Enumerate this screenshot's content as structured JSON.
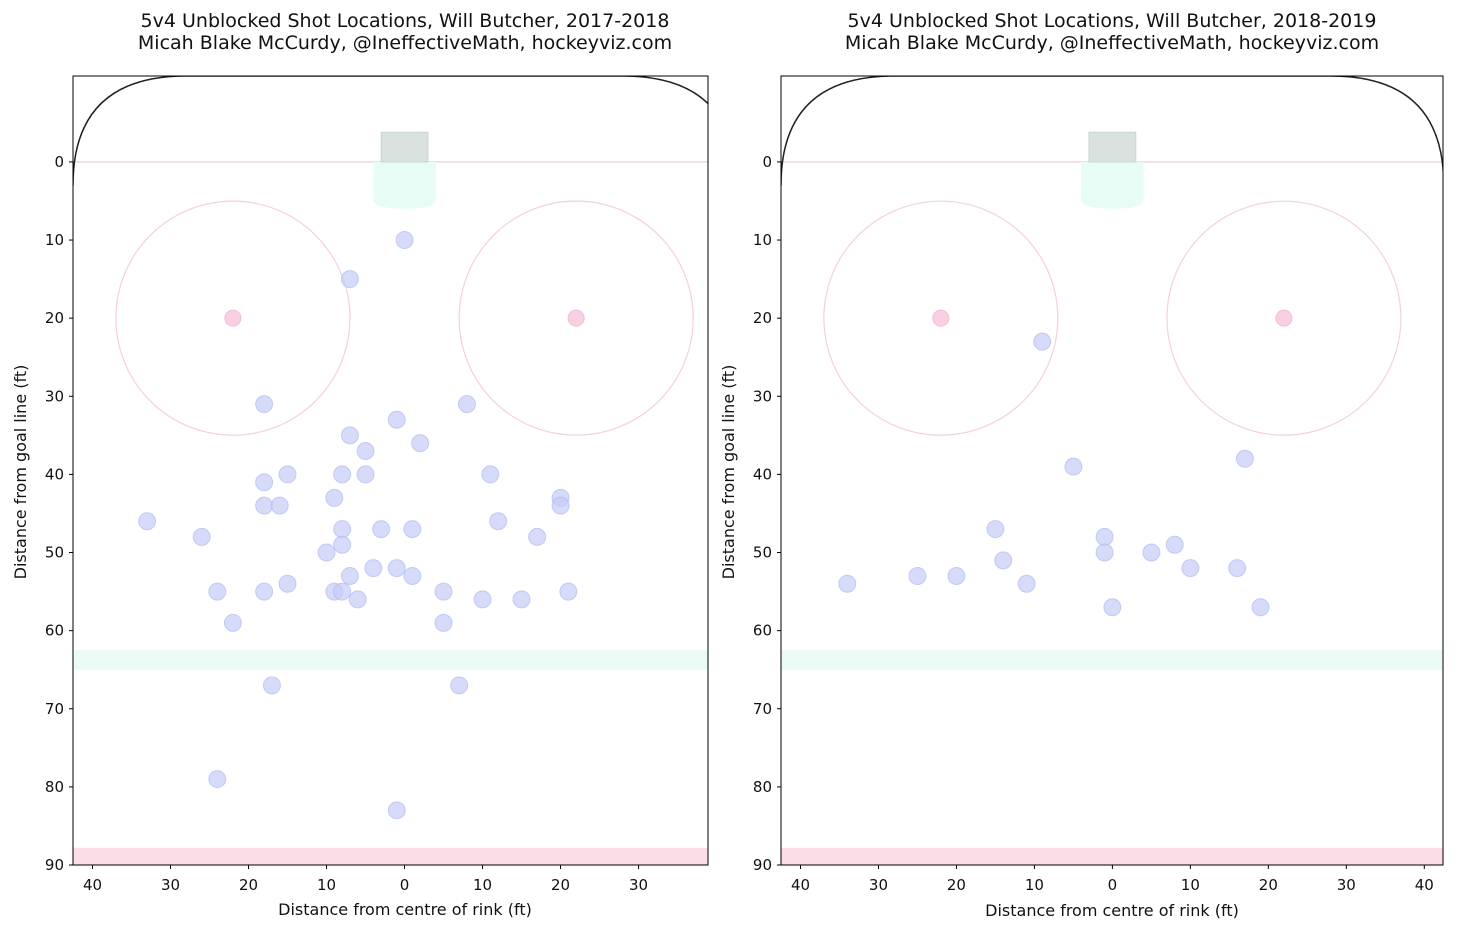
{
  "chart_data": [
    {
      "type": "scatter",
      "title": "5v4 Unblocked Shot Locations, Will Butcher, 2017-2018",
      "subtitle": "Micah Blake McCurdy, @IneffectiveMath, hockeyviz.com",
      "xlabel": "Distance from centre of rink (ft)",
      "ylabel": "Distance from goal line (ft)",
      "xlim": [
        -42.5,
        38.9
      ],
      "ylim": [
        -11,
        90
      ],
      "xticks": [
        -40,
        -30,
        -20,
        -10,
        0,
        10,
        20,
        30
      ],
      "xtick_labels": [
        "40",
        "30",
        "20",
        "10",
        "0",
        "10",
        "20",
        "30"
      ],
      "yticks": [
        0,
        10,
        20,
        30,
        40,
        50,
        60,
        70,
        80,
        90
      ],
      "ytick_labels": [
        "0",
        "10",
        "20",
        "30",
        "40",
        "50",
        "60",
        "70",
        "80",
        "90"
      ],
      "grid": false,
      "points": [
        [
          0,
          10
        ],
        [
          -7,
          15
        ],
        [
          -18,
          31
        ],
        [
          8,
          31
        ],
        [
          -1,
          33
        ],
        [
          -7,
          35
        ],
        [
          2,
          36
        ],
        [
          -5,
          37
        ],
        [
          -15,
          40
        ],
        [
          -8,
          40
        ],
        [
          -5,
          40
        ],
        [
          11,
          40
        ],
        [
          -18,
          41
        ],
        [
          -9,
          43
        ],
        [
          20,
          43
        ],
        [
          -18,
          44
        ],
        [
          -16,
          44
        ],
        [
          20,
          44
        ],
        [
          -33,
          46
        ],
        [
          12,
          46
        ],
        [
          -8,
          47
        ],
        [
          -3,
          47
        ],
        [
          1,
          47
        ],
        [
          -26,
          48
        ],
        [
          17,
          48
        ],
        [
          -8,
          49
        ],
        [
          -10,
          50
        ],
        [
          -4,
          52
        ],
        [
          -1,
          52
        ],
        [
          -7,
          53
        ],
        [
          1,
          53
        ],
        [
          -15,
          54
        ],
        [
          -24,
          55
        ],
        [
          -18,
          55
        ],
        [
          -9,
          55
        ],
        [
          -8,
          55
        ],
        [
          5,
          55
        ],
        [
          21,
          55
        ],
        [
          -6,
          56
        ],
        [
          10,
          56
        ],
        [
          15,
          56
        ],
        [
          -22,
          59
        ],
        [
          5,
          59
        ],
        [
          -17,
          67
        ],
        [
          7,
          67
        ],
        [
          -24,
          79
        ],
        [
          -1,
          83
        ]
      ]
    },
    {
      "type": "scatter",
      "title": "5v4 Unblocked Shot Locations, Will Butcher, 2018-2019",
      "subtitle": "Micah Blake McCurdy, @IneffectiveMath, hockeyviz.com",
      "xlabel": "Distance from centre of rink (ft)",
      "ylabel": "Distance from goal line (ft)",
      "xlim": [
        -42.5,
        42.4
      ],
      "ylim": [
        -11,
        90
      ],
      "xticks": [
        -40,
        -30,
        -20,
        -10,
        0,
        10,
        20,
        30,
        40
      ],
      "xtick_labels": [
        "40",
        "30",
        "20",
        "10",
        "0",
        "10",
        "20",
        "30",
        "40"
      ],
      "yticks": [
        0,
        10,
        20,
        30,
        40,
        50,
        60,
        70,
        80,
        90
      ],
      "ytick_labels": [
        "0",
        "10",
        "20",
        "30",
        "40",
        "50",
        "60",
        "70",
        "80",
        "90"
      ],
      "grid": false,
      "points": [
        [
          -9,
          23
        ],
        [
          -5,
          39
        ],
        [
          17,
          38
        ],
        [
          -15,
          47
        ],
        [
          -1,
          48
        ],
        [
          -1,
          50
        ],
        [
          8,
          49
        ],
        [
          5,
          50
        ],
        [
          -14,
          51
        ],
        [
          10,
          52
        ],
        [
          16,
          52
        ],
        [
          -34,
          54
        ],
        [
          -25,
          53
        ],
        [
          -20,
          53
        ],
        [
          -11,
          54
        ],
        [
          0,
          57
        ],
        [
          19,
          57
        ]
      ]
    }
  ],
  "colors": {
    "shot": "#c5ccf6",
    "shot_edge": "#a9b4ef",
    "faceoff": "#f5cfe0",
    "faceoff_dot": "#f9cfe3",
    "crease": "#e6fcf5",
    "net": "#d9e2df",
    "blue_line": "#eafbf5",
    "goal_line": "#f4d2e2",
    "end_band": "#fbdde8",
    "boards": "#222222"
  }
}
